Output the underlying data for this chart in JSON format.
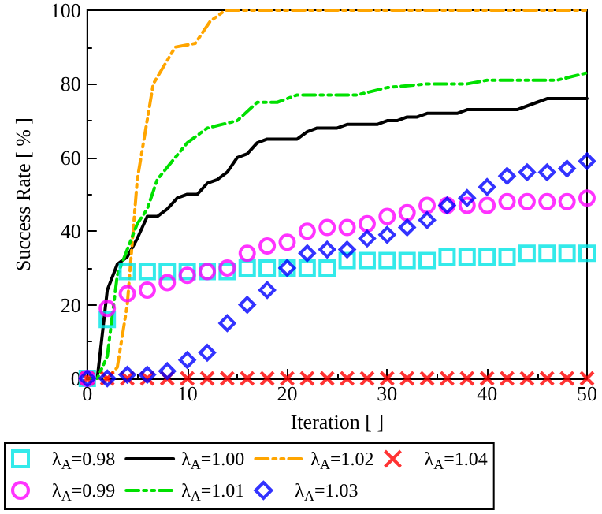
{
  "chart_data": {
    "type": "scatter",
    "xlabel": "Iteration [ ]",
    "ylabel": "Success Rate [ % ]",
    "xlim": [
      0,
      50
    ],
    "xticks": [
      0,
      10,
      20,
      30,
      40,
      50
    ],
    "ylim": [
      0,
      100
    ],
    "yticks": [
      0,
      20,
      40,
      60,
      80,
      100
    ],
    "grid": false,
    "legend": "bottom",
    "series": [
      {
        "name": "λ$_{A}$=0.98",
        "marker": "square",
        "color": "#00e5e5",
        "x": [
          0,
          2,
          4,
          6,
          8,
          10,
          12,
          14,
          16,
          18,
          20,
          22,
          24,
          26,
          28,
          30,
          32,
          34,
          36,
          38,
          40,
          42,
          44,
          46,
          48,
          50
        ],
        "values": [
          0,
          16,
          29,
          29,
          29,
          29,
          29,
          29,
          30,
          30,
          30,
          30,
          30,
          32,
          32,
          32,
          32,
          32,
          33,
          33,
          33,
          33,
          34,
          34,
          34,
          34
        ]
      },
      {
        "name": "λ$_{A}$=1.00",
        "type": "line",
        "line_style": "solid",
        "color": "#000000",
        "x": [
          0,
          1,
          2,
          3,
          4,
          5,
          6,
          7,
          8,
          9,
          10,
          11,
          12,
          13,
          14,
          15,
          16,
          17,
          18,
          21,
          22,
          23,
          25,
          26,
          29,
          30,
          31,
          32,
          33,
          34,
          37,
          38,
          43,
          45,
          46,
          50
        ],
        "values": [
          0,
          0,
          24,
          31,
          33,
          38,
          44,
          44,
          46,
          49,
          50,
          50,
          53,
          54,
          56,
          60,
          61,
          64,
          65,
          65,
          67,
          68,
          68,
          69,
          69,
          70,
          70,
          71,
          71,
          72,
          72,
          73,
          73,
          75,
          76,
          76
        ]
      },
      {
        "name": "λ$_{A}$=1.02",
        "type": "line",
        "line_style": "dashed",
        "color": "#ffa500",
        "x": [
          0,
          2,
          3,
          4,
          5,
          6.6,
          8.8,
          10.8,
          12.3,
          13.8,
          50
        ],
        "values": [
          0,
          0,
          3,
          20,
          54,
          80,
          90,
          91,
          97,
          100,
          100
        ]
      },
      {
        "name": "λ$_{A}$=1.04",
        "marker": "cross",
        "color": "#ff0000",
        "x": [
          0,
          2,
          4,
          6,
          8,
          10,
          12,
          14,
          16,
          18,
          20,
          22,
          24,
          26,
          28,
          30,
          32,
          34,
          36,
          38,
          40,
          42,
          44,
          46,
          48,
          50
        ],
        "values": [
          0,
          0,
          0,
          0,
          0,
          0,
          0,
          0,
          0,
          0,
          0,
          0,
          0,
          0,
          0,
          0,
          0,
          0,
          0,
          0,
          0,
          0,
          0,
          0,
          0,
          0
        ]
      },
      {
        "name": "λ$_{A}$=0.99",
        "marker": "circle",
        "color": "#ff00ff",
        "x": [
          0,
          2,
          4,
          6,
          8,
          10,
          12,
          14,
          16,
          18,
          20,
          22,
          24,
          26,
          28,
          30,
          32,
          34,
          36,
          38,
          40,
          42,
          44,
          46,
          48,
          50
        ],
        "values": [
          0,
          19,
          23,
          24,
          26,
          28,
          29,
          30,
          34,
          36,
          37,
          40,
          41,
          41,
          42,
          44,
          45,
          47,
          47,
          47,
          47,
          48,
          48,
          48,
          48,
          49
        ]
      },
      {
        "name": "λ$_{A}$=1.01",
        "type": "line",
        "line_style": "dashed",
        "color": "#00e000",
        "x": [
          0,
          1,
          2,
          3,
          4,
          5,
          6,
          7,
          10,
          12,
          15,
          17,
          19,
          21,
          27,
          30,
          34,
          38,
          40,
          47,
          50
        ],
        "values": [
          0,
          0,
          6,
          28,
          35,
          42,
          46,
          54,
          64,
          68,
          70,
          75,
          75,
          77,
          77,
          79,
          80,
          80,
          81,
          81,
          83
        ]
      },
      {
        "name": "λ$_{A}$=1.03",
        "marker": "diamond",
        "color": "#0000ff",
        "x": [
          0,
          2,
          4,
          6,
          8,
          10,
          12,
          14,
          16,
          18,
          20,
          22,
          24,
          26,
          28,
          30,
          32,
          34,
          36,
          38,
          40,
          42,
          44,
          46,
          48,
          50
        ],
        "values": [
          0,
          0,
          1,
          1,
          2,
          5,
          7,
          15,
          20,
          24,
          30,
          34,
          35,
          35,
          38,
          39,
          41,
          43,
          47,
          49,
          52,
          55,
          56,
          56,
          57,
          59
        ]
      }
    ]
  }
}
